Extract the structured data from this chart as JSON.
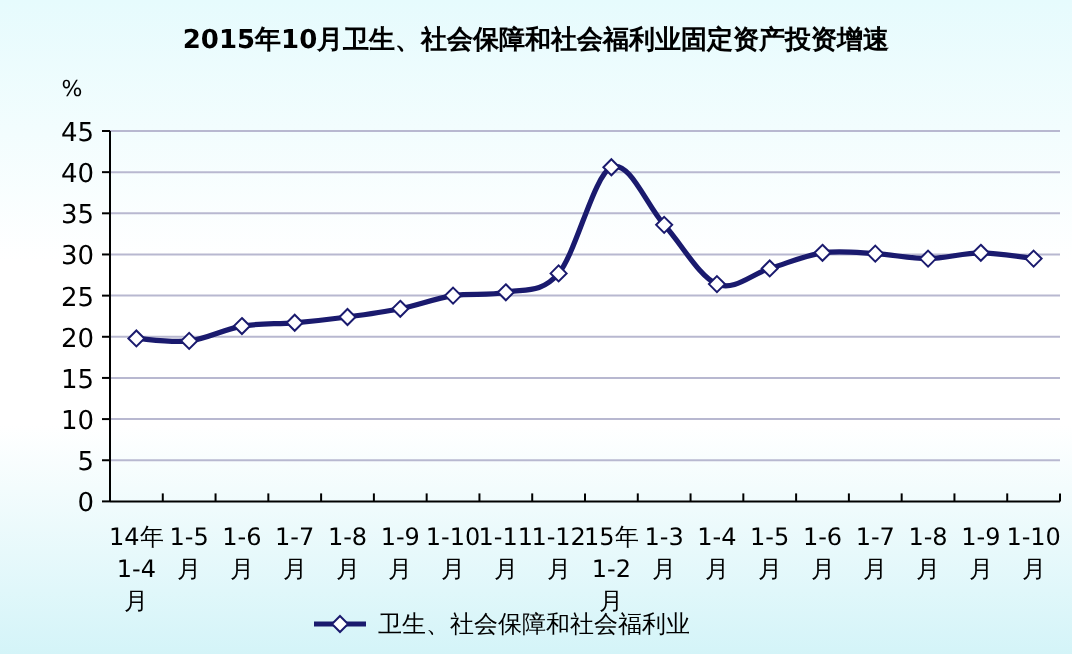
{
  "chart_data": {
    "type": "line",
    "title": "2015年10月卫生、社会保障和社会福利业固定资产投资增速",
    "ylabel": "%",
    "categories": [
      "14年1-4月",
      "1-5月",
      "1-6月",
      "1-7月",
      "1-8月",
      "1-9月",
      "1-10月",
      "1-11月",
      "1-12月",
      "15年1-2月",
      "1-3月",
      "1-4月",
      "1-5月",
      "1-6月",
      "1-7月",
      "1-8月",
      "1-9月",
      "1-10月"
    ],
    "series": [
      {
        "name": "卫生、社会保障和社会福利业",
        "color": "#1a1a6e",
        "values": [
          19.8,
          19.5,
          21.3,
          21.7,
          22.4,
          23.4,
          25.0,
          25.4,
          27.7,
          40.6,
          33.6,
          26.4,
          28.3,
          30.2,
          30.1,
          29.5,
          30.2,
          29.5
        ]
      }
    ],
    "ylim": [
      0,
      45
    ],
    "yticks": [
      0,
      5,
      10,
      15,
      20,
      25,
      30,
      35,
      40,
      45
    ],
    "grid": "y",
    "legend": "bottom",
    "marker": "diamond",
    "line_style": "solid"
  }
}
